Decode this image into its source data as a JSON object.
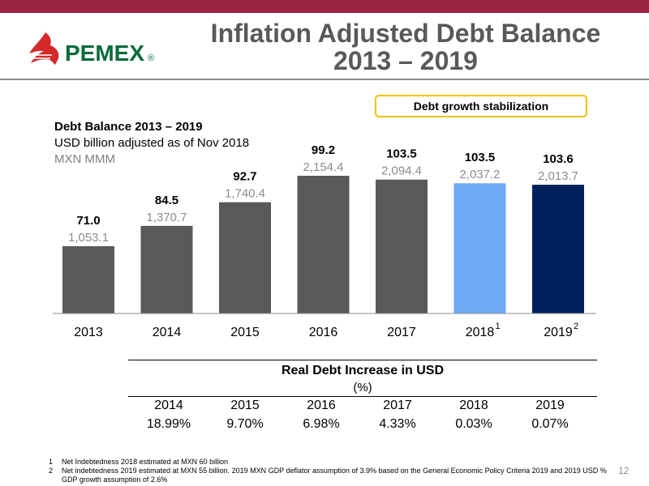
{
  "header": {
    "logo_text": "PEMEX",
    "logo_reg": "®",
    "title_line1": "Inflation Adjusted Debt Balance",
    "title_line2": "2013 – 2019",
    "brand_color": "#9b2242"
  },
  "callout": {
    "label": "Debt growth stabilization",
    "border_color": "#f2c100"
  },
  "chart_data": {
    "type": "bar",
    "title": "Debt Balance 2013 – 2019",
    "subtitle": "USD billion adjusted as of Nov 2018",
    "secondary_label": "MXN MMM",
    "categories": [
      "2013",
      "2014",
      "2015",
      "2016",
      "2017",
      "2018",
      "2019"
    ],
    "category_superscripts": [
      "",
      "",
      "",
      "",
      "",
      "1",
      "2"
    ],
    "series": [
      {
        "name": "USD billion adjusted as of Nov 2018",
        "values": [
          71.0,
          84.5,
          92.7,
          99.2,
          103.5,
          103.5,
          103.6
        ]
      },
      {
        "name": "MXN MMM",
        "values": [
          1053.1,
          1370.7,
          1740.4,
          2154.4,
          2094.4,
          2037.2,
          2013.7
        ]
      }
    ],
    "value_labels": [
      "71.0",
      "84.5",
      "92.7",
      "99.2",
      "103.5",
      "103.5",
      "103.6"
    ],
    "secondary_value_labels": [
      "1,053.1",
      "1,370.7",
      "1,740.4",
      "2,154.4",
      "2,094.4",
      "2,037.2",
      "2,013.7"
    ],
    "bar_colors": [
      "#595959",
      "#595959",
      "#595959",
      "#595959",
      "#595959",
      "#6fa8f5",
      "#00205b"
    ],
    "ylim": [
      0,
      2154.4
    ],
    "grid": false,
    "legend": "none"
  },
  "table": {
    "title": "Real Debt Increase in USD",
    "unit": "(%)",
    "years": [
      "2014",
      "2015",
      "2016",
      "2017",
      "2018",
      "2019"
    ],
    "values": [
      "18.99%",
      "9.70%",
      "6.98%",
      "4.33%",
      "0.03%",
      "0.07%"
    ]
  },
  "footnotes": [
    {
      "num": "1",
      "text": "Net Indebtedness 2018 estimated at MXN 60 billion"
    },
    {
      "num": "2",
      "text": "Net indebtedness 2019 estimated at MXN 55 billion. 2019 MXN GDP deflator assumption of 3.9% based on the General Economic Policy Criteria 2019 and 2019 USD % GDP growth  assumption of 2.6%"
    }
  ],
  "page_number": "12"
}
